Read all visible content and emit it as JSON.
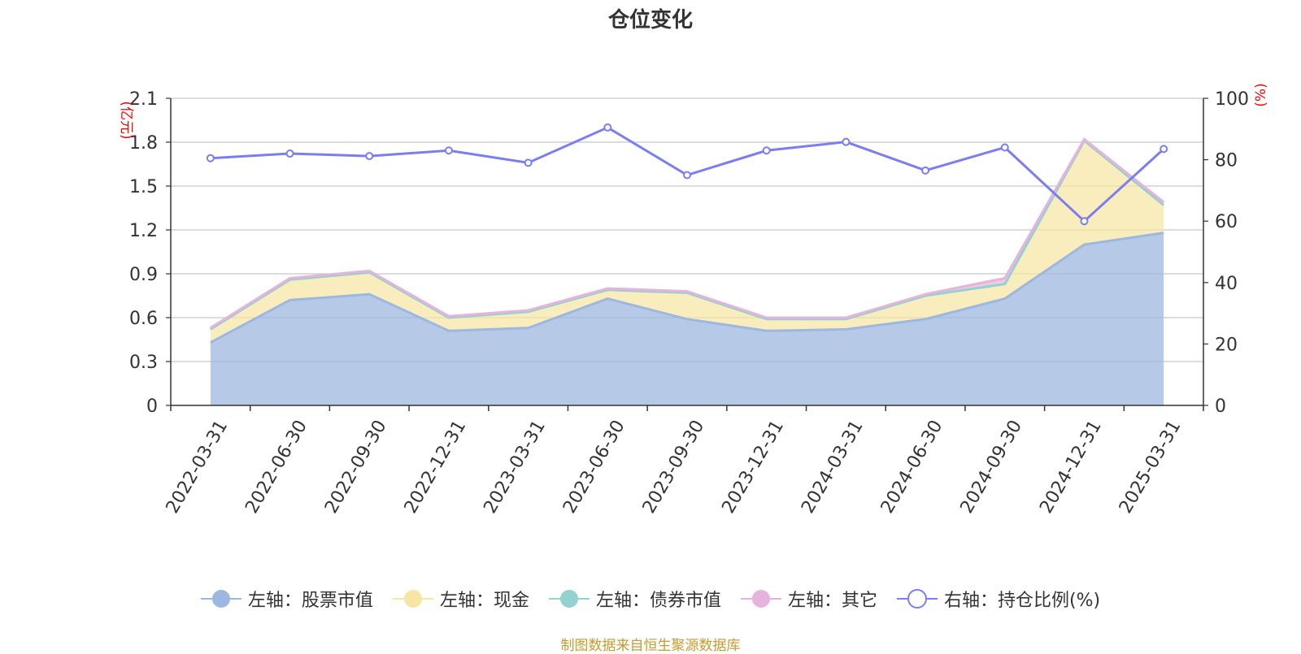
{
  "title": "仓位变化",
  "footer": "制图数据来自恒生聚源数据库",
  "colors": {
    "stock": "#9db8e0",
    "cash": "#f7e5a3",
    "bond": "#93d2d0",
    "other": "#e6b3dc",
    "ratio": "#7b7ef0",
    "axis_unit": "#ff0000",
    "footer": "#c89a30"
  },
  "legend": [
    {
      "key": "stock",
      "label": "左轴：股票市值",
      "icon": "filled-circle"
    },
    {
      "key": "cash",
      "label": "左轴：现金",
      "icon": "filled-circle"
    },
    {
      "key": "bond",
      "label": "左轴：债券市值",
      "icon": "filled-circle"
    },
    {
      "key": "other",
      "label": "左轴：其它",
      "icon": "filled-circle"
    },
    {
      "key": "ratio",
      "label": "右轴：持仓比例(%)",
      "icon": "hollow-circle"
    }
  ],
  "chart_data": {
    "type": "area",
    "title": "仓位变化",
    "categories": [
      "2022-03-31",
      "2022-06-30",
      "2022-09-30",
      "2022-12-31",
      "2023-03-31",
      "2023-06-30",
      "2023-09-30",
      "2023-12-31",
      "2024-03-31",
      "2024-06-30",
      "2024-09-30",
      "2024-12-31",
      "2025-03-31"
    ],
    "left_axis": {
      "unit": "(亿元)",
      "min": 0,
      "max": 2.1,
      "ticks": [
        "0",
        "0.3",
        "0.6",
        "0.9",
        "1.2",
        "1.5",
        "1.8",
        "2.1"
      ]
    },
    "right_axis": {
      "unit": "(%)",
      "min": 0,
      "max": 100,
      "ticks": [
        "0",
        "20",
        "40",
        "60",
        "80",
        "100"
      ]
    },
    "grid": true,
    "legend_position": "bottom",
    "series": [
      {
        "name": "左轴：股票市值",
        "axis": "left",
        "stacked": true,
        "values": [
          0.43,
          0.72,
          0.76,
          0.51,
          0.53,
          0.73,
          0.59,
          0.51,
          0.52,
          0.59,
          0.73,
          1.1,
          1.18
        ]
      },
      {
        "name": "左轴：现金",
        "axis": "left",
        "stacked": true,
        "values": [
          0.09,
          0.14,
          0.15,
          0.09,
          0.11,
          0.06,
          0.18,
          0.08,
          0.07,
          0.16,
          0.1,
          0.71,
          0.19
        ]
      },
      {
        "name": "左轴：债券市值",
        "axis": "left",
        "stacked": true,
        "values": [
          0,
          0,
          0,
          0,
          0,
          0,
          0,
          0,
          0,
          0,
          0,
          0,
          0
        ]
      },
      {
        "name": "左轴：其它",
        "axis": "left",
        "stacked": true,
        "values": [
          0.01,
          0.01,
          0.01,
          0.01,
          0.01,
          0.01,
          0.01,
          0.01,
          0.01,
          0.01,
          0.04,
          0.01,
          0.02
        ]
      },
      {
        "name": "右轴：持仓比例(%)",
        "axis": "right",
        "type": "line",
        "values": [
          80.5,
          82,
          81.2,
          83,
          79,
          90.5,
          75,
          83,
          85.8,
          76.5,
          84,
          60,
          83.5
        ]
      }
    ]
  }
}
